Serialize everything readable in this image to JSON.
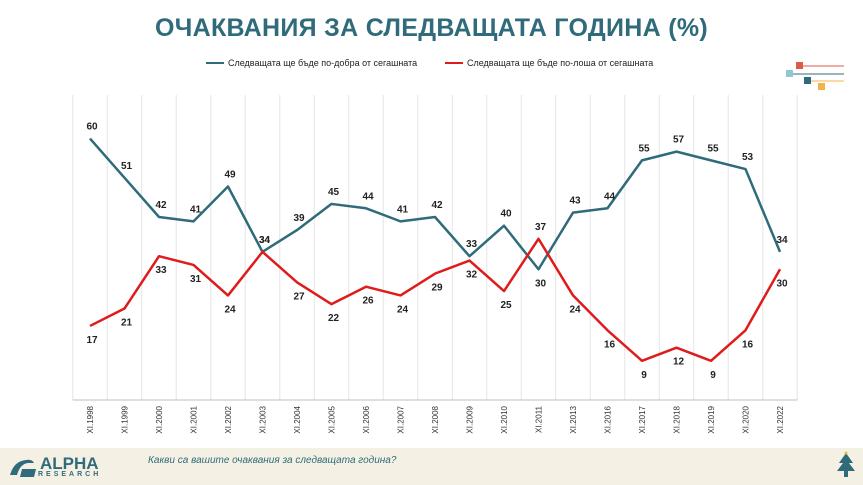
{
  "chart_data": {
    "type": "line",
    "title": "ОЧАКВАНИЯ ЗА СЛЕДВАЩАТА ГОДИНА (%)",
    "categories": [
      "XI.1998",
      "XI.1999",
      "XI.2000",
      "XI.2001",
      "XI.2002",
      "XI.2003",
      "XI.2004",
      "XI.2005",
      "XI.2006",
      "XI.2007",
      "XI.2008",
      "XI.2009",
      "XI.2010",
      "XI.2011",
      "XI.2013",
      "XI.2016",
      "XI.2017",
      "XI.2018",
      "XI.2019",
      "XI.2020",
      "XI.2022"
    ],
    "series": [
      {
        "name": "Следващата ще бъде по-добра от сегашната",
        "color": "#2f6b7a",
        "values": [
          60,
          51,
          42,
          41,
          49,
          34,
          39,
          45,
          44,
          41,
          42,
          33,
          40,
          30,
          43,
          44,
          55,
          57,
          55,
          53,
          34
        ]
      },
      {
        "name": "Следващата ще бъде по-лоша от сегашната",
        "color": "#e01b1b",
        "values": [
          17,
          21,
          33,
          31,
          24,
          34,
          27,
          22,
          26,
          24,
          29,
          32,
          25,
          37,
          24,
          16,
          9,
          12,
          9,
          16,
          30
        ]
      }
    ],
    "ylim": [
      0,
      70
    ],
    "grid": true,
    "legend": "top"
  },
  "footer": {
    "logo_name": "ALPHA",
    "logo_sub": "RESEARCH",
    "question": "Какви са вашите очаквания за следващата година?"
  }
}
